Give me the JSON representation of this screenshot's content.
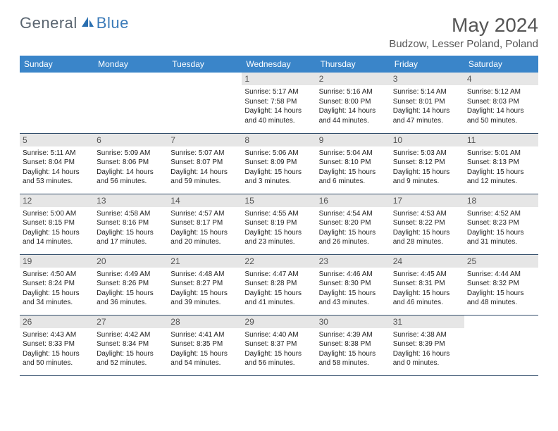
{
  "logo": {
    "text1": "General",
    "text2": "Blue"
  },
  "title": "May 2024",
  "location": "Budzow, Lesser Poland, Poland",
  "weekdays": [
    "Sunday",
    "Monday",
    "Tuesday",
    "Wednesday",
    "Thursday",
    "Friday",
    "Saturday"
  ],
  "styling": {
    "header_bg": "#3a85c9",
    "header_fg": "#ffffff",
    "daynum_bg": "#e6e6e6",
    "border_color": "#334e6b",
    "title_color": "#555555",
    "body_font_size": 10,
    "title_font_size": 28,
    "location_font_size": 15
  },
  "grid": [
    [
      {
        "blank": true
      },
      {
        "blank": true
      },
      {
        "blank": true
      },
      {
        "day": "1",
        "sunrise": "5:17 AM",
        "sunset": "7:58 PM",
        "daylight": "14 hours and 40 minutes."
      },
      {
        "day": "2",
        "sunrise": "5:16 AM",
        "sunset": "8:00 PM",
        "daylight": "14 hours and 44 minutes."
      },
      {
        "day": "3",
        "sunrise": "5:14 AM",
        "sunset": "8:01 PM",
        "daylight": "14 hours and 47 minutes."
      },
      {
        "day": "4",
        "sunrise": "5:12 AM",
        "sunset": "8:03 PM",
        "daylight": "14 hours and 50 minutes."
      }
    ],
    [
      {
        "day": "5",
        "sunrise": "5:11 AM",
        "sunset": "8:04 PM",
        "daylight": "14 hours and 53 minutes."
      },
      {
        "day": "6",
        "sunrise": "5:09 AM",
        "sunset": "8:06 PM",
        "daylight": "14 hours and 56 minutes."
      },
      {
        "day": "7",
        "sunrise": "5:07 AM",
        "sunset": "8:07 PM",
        "daylight": "14 hours and 59 minutes."
      },
      {
        "day": "8",
        "sunrise": "5:06 AM",
        "sunset": "8:09 PM",
        "daylight": "15 hours and 3 minutes."
      },
      {
        "day": "9",
        "sunrise": "5:04 AM",
        "sunset": "8:10 PM",
        "daylight": "15 hours and 6 minutes."
      },
      {
        "day": "10",
        "sunrise": "5:03 AM",
        "sunset": "8:12 PM",
        "daylight": "15 hours and 9 minutes."
      },
      {
        "day": "11",
        "sunrise": "5:01 AM",
        "sunset": "8:13 PM",
        "daylight": "15 hours and 12 minutes."
      }
    ],
    [
      {
        "day": "12",
        "sunrise": "5:00 AM",
        "sunset": "8:15 PM",
        "daylight": "15 hours and 14 minutes."
      },
      {
        "day": "13",
        "sunrise": "4:58 AM",
        "sunset": "8:16 PM",
        "daylight": "15 hours and 17 minutes."
      },
      {
        "day": "14",
        "sunrise": "4:57 AM",
        "sunset": "8:17 PM",
        "daylight": "15 hours and 20 minutes."
      },
      {
        "day": "15",
        "sunrise": "4:55 AM",
        "sunset": "8:19 PM",
        "daylight": "15 hours and 23 minutes."
      },
      {
        "day": "16",
        "sunrise": "4:54 AM",
        "sunset": "8:20 PM",
        "daylight": "15 hours and 26 minutes."
      },
      {
        "day": "17",
        "sunrise": "4:53 AM",
        "sunset": "8:22 PM",
        "daylight": "15 hours and 28 minutes."
      },
      {
        "day": "18",
        "sunrise": "4:52 AM",
        "sunset": "8:23 PM",
        "daylight": "15 hours and 31 minutes."
      }
    ],
    [
      {
        "day": "19",
        "sunrise": "4:50 AM",
        "sunset": "8:24 PM",
        "daylight": "15 hours and 34 minutes."
      },
      {
        "day": "20",
        "sunrise": "4:49 AM",
        "sunset": "8:26 PM",
        "daylight": "15 hours and 36 minutes."
      },
      {
        "day": "21",
        "sunrise": "4:48 AM",
        "sunset": "8:27 PM",
        "daylight": "15 hours and 39 minutes."
      },
      {
        "day": "22",
        "sunrise": "4:47 AM",
        "sunset": "8:28 PM",
        "daylight": "15 hours and 41 minutes."
      },
      {
        "day": "23",
        "sunrise": "4:46 AM",
        "sunset": "8:30 PM",
        "daylight": "15 hours and 43 minutes."
      },
      {
        "day": "24",
        "sunrise": "4:45 AM",
        "sunset": "8:31 PM",
        "daylight": "15 hours and 46 minutes."
      },
      {
        "day": "25",
        "sunrise": "4:44 AM",
        "sunset": "8:32 PM",
        "daylight": "15 hours and 48 minutes."
      }
    ],
    [
      {
        "day": "26",
        "sunrise": "4:43 AM",
        "sunset": "8:33 PM",
        "daylight": "15 hours and 50 minutes."
      },
      {
        "day": "27",
        "sunrise": "4:42 AM",
        "sunset": "8:34 PM",
        "daylight": "15 hours and 52 minutes."
      },
      {
        "day": "28",
        "sunrise": "4:41 AM",
        "sunset": "8:35 PM",
        "daylight": "15 hours and 54 minutes."
      },
      {
        "day": "29",
        "sunrise": "4:40 AM",
        "sunset": "8:37 PM",
        "daylight": "15 hours and 56 minutes."
      },
      {
        "day": "30",
        "sunrise": "4:39 AM",
        "sunset": "8:38 PM",
        "daylight": "15 hours and 58 minutes."
      },
      {
        "day": "31",
        "sunrise": "4:38 AM",
        "sunset": "8:39 PM",
        "daylight": "16 hours and 0 minutes."
      },
      {
        "blank": true
      }
    ]
  ],
  "labels": {
    "sunrise": "Sunrise:",
    "sunset": "Sunset:",
    "daylight": "Daylight:"
  }
}
